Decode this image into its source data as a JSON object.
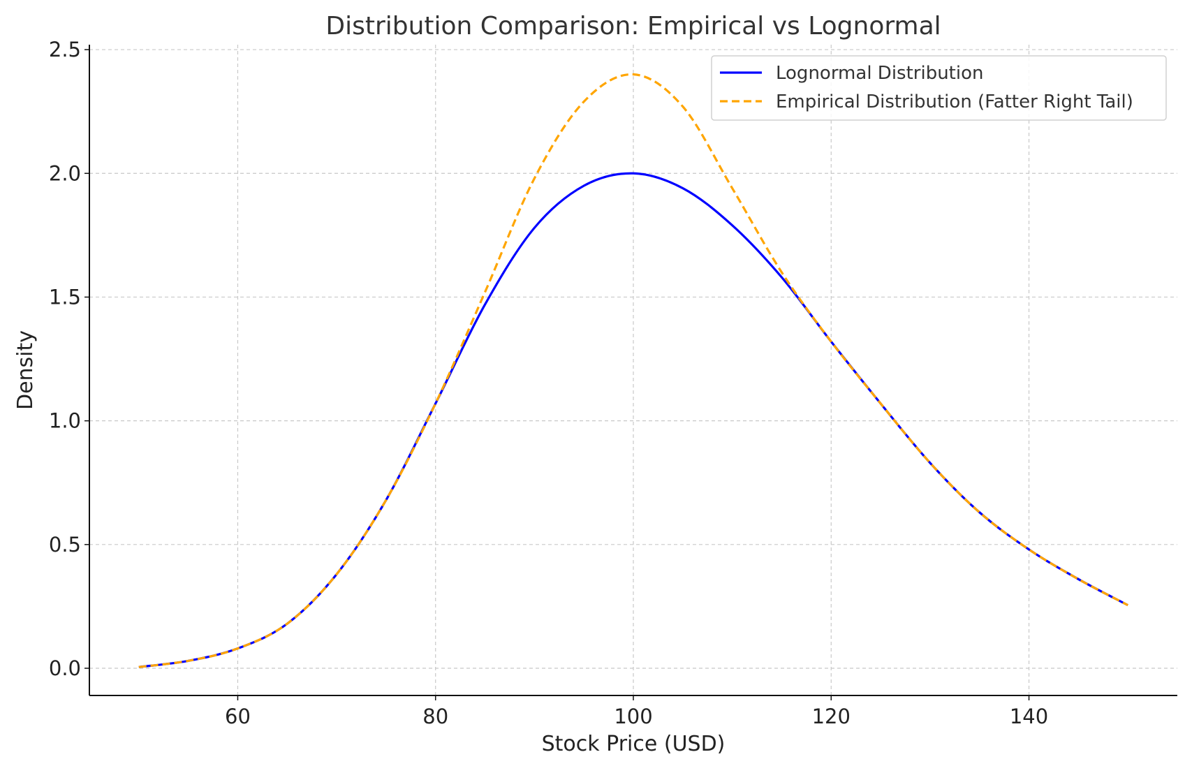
{
  "chart_data": {
    "type": "line",
    "title": "Distribution Comparison: Empirical vs Lognormal",
    "xlabel": "Stock Price (USD)",
    "ylabel": "Density",
    "xlim": [
      45,
      155
    ],
    "ylim": [
      -0.11,
      2.52
    ],
    "x_ticks": [
      60,
      80,
      100,
      120,
      140
    ],
    "y_ticks": [
      0.0,
      0.5,
      1.0,
      1.5,
      2.0,
      2.5
    ],
    "x_tick_labels": [
      "60",
      "80",
      "100",
      "120",
      "140"
    ],
    "y_tick_labels": [
      "0.0",
      "0.5",
      "1.0",
      "1.5",
      "2.0",
      "2.5"
    ],
    "grid": true,
    "legend_position": "top-right",
    "series": [
      {
        "name": "Lognormal Distribution",
        "color": "#0000ff",
        "style": "solid",
        "x": [
          50,
          55,
          60,
          65,
          70,
          75,
          80,
          85,
          90,
          95,
          100,
          105,
          110,
          115,
          120,
          125,
          130,
          135,
          140,
          145,
          150
        ],
        "y": [
          0.005,
          0.03,
          0.08,
          0.18,
          0.38,
          0.68,
          1.07,
          1.47,
          1.78,
          1.95,
          2.0,
          1.94,
          1.79,
          1.58,
          1.32,
          1.07,
          0.83,
          0.63,
          0.48,
          0.36,
          0.255
        ]
      },
      {
        "name": "Empirical Distribution (Fatter Right Tail)",
        "color": "#ffa500",
        "style": "dashed",
        "x": [
          50,
          55,
          60,
          65,
          70,
          75,
          80,
          85,
          90,
          95,
          100,
          105,
          110,
          115,
          120,
          125,
          130,
          135,
          140,
          145,
          150
        ],
        "y": [
          0.005,
          0.03,
          0.08,
          0.18,
          0.38,
          0.68,
          1.07,
          1.52,
          1.98,
          2.29,
          2.4,
          2.27,
          1.94,
          1.6,
          1.32,
          1.07,
          0.83,
          0.63,
          0.48,
          0.36,
          0.255
        ]
      }
    ]
  }
}
